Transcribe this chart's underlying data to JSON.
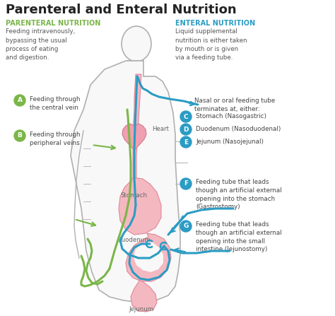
{
  "title": "Parenteral and Enteral Nutrition",
  "title_fontsize": 13,
  "title_color": "#222222",
  "bg_color": "#ffffff",
  "left_heading": "PARENTERAL NUTRITION",
  "left_heading_color": "#7ab648",
  "left_text": "Feeding intravenously,\nbypassing the usual\nprocess of eating\nand digestion.",
  "left_text_color": "#555555",
  "right_heading": "ENTERAL NUTRITION",
  "right_heading_color": "#2b9cc4",
  "right_text": "Liquid supplemental\nnutrition is either taken\nby mouth or is given\nvia a feeding tube.",
  "right_text_color": "#555555",
  "label_A_text": "Feeding through\nthe central vein",
  "label_B_text": "Feeding through\nperipheral veins",
  "nasal_label": "Nasal or oral feeding tube\nterminates at, either:",
  "label_C_text": "Stomach (Nasogastric)",
  "label_D_text": "Duodenum (Nasoduodenal)",
  "label_E_text": "Jejunum (Nasojejunal)",
  "label_F_text": "Feeding tube that leads\nthough an artificial external\nopening into the stomach\n(Gastrostomy)",
  "label_G_text": "Feeding tube that leads\nthough an artificial external\nopening into the small\nintestine (Jejunostomy)",
  "label_blue_color": "#2b9cc4",
  "label_green_color": "#7ab648",
  "label_text_color": "#444444",
  "body_outline_color": "#b0b0b0",
  "organ_fill_color": "#f4b8c1",
  "organ_outline_color": "#e08898",
  "green_line_color": "#7ab648",
  "blue_line_color": "#2b9cc4",
  "heart_label": "Heart",
  "stomach_label": "Stomach",
  "duodenum_label": "Duodenum",
  "jejunum_label": "Jejunum",
  "organ_label_color": "#666666"
}
